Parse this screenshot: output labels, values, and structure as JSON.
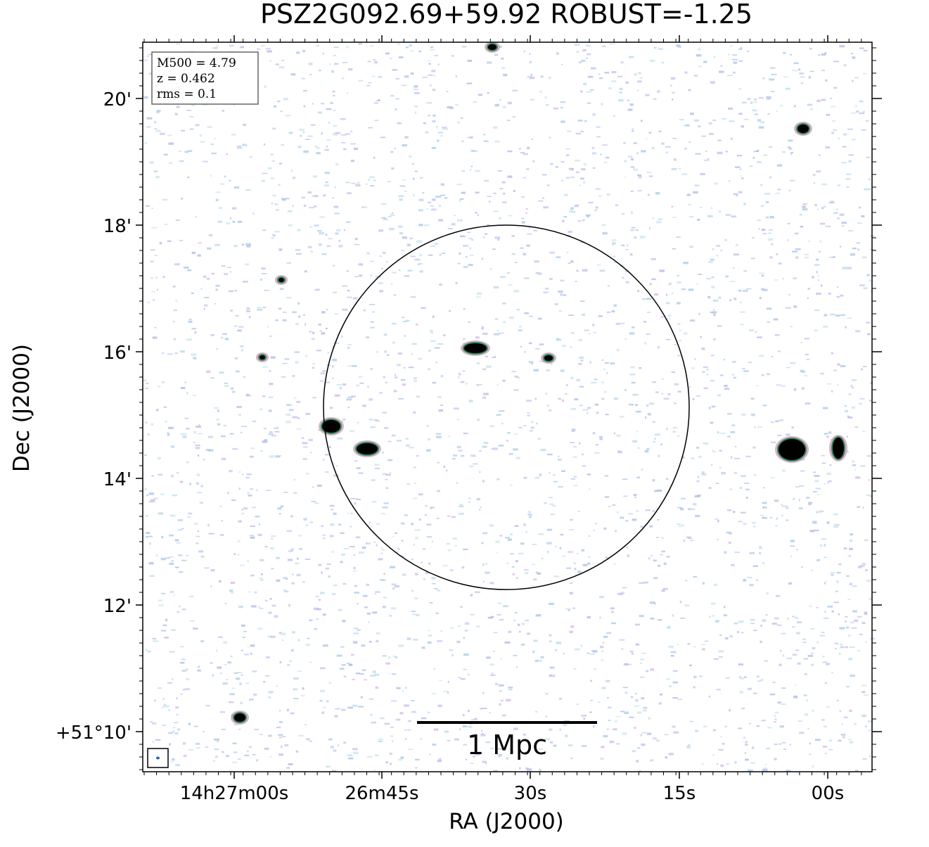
{
  "title": "PSZ2G092.69+59.92 ROBUST=-1.25",
  "x_axis": {
    "label": "RA (J2000)",
    "ticks": [
      "14h27m00s",
      "26m45s",
      "30s",
      "15s",
      "00s"
    ]
  },
  "y_axis": {
    "label": "Dec (J2000)",
    "ticks": [
      "20'",
      "18'",
      "16'",
      "14'",
      "12'",
      "+51°10'"
    ]
  },
  "info_box": [
    "M500 = 4.79",
    "z = 0.462",
    "rms = 0.1"
  ],
  "scale_bar": "1 Mpc"
}
